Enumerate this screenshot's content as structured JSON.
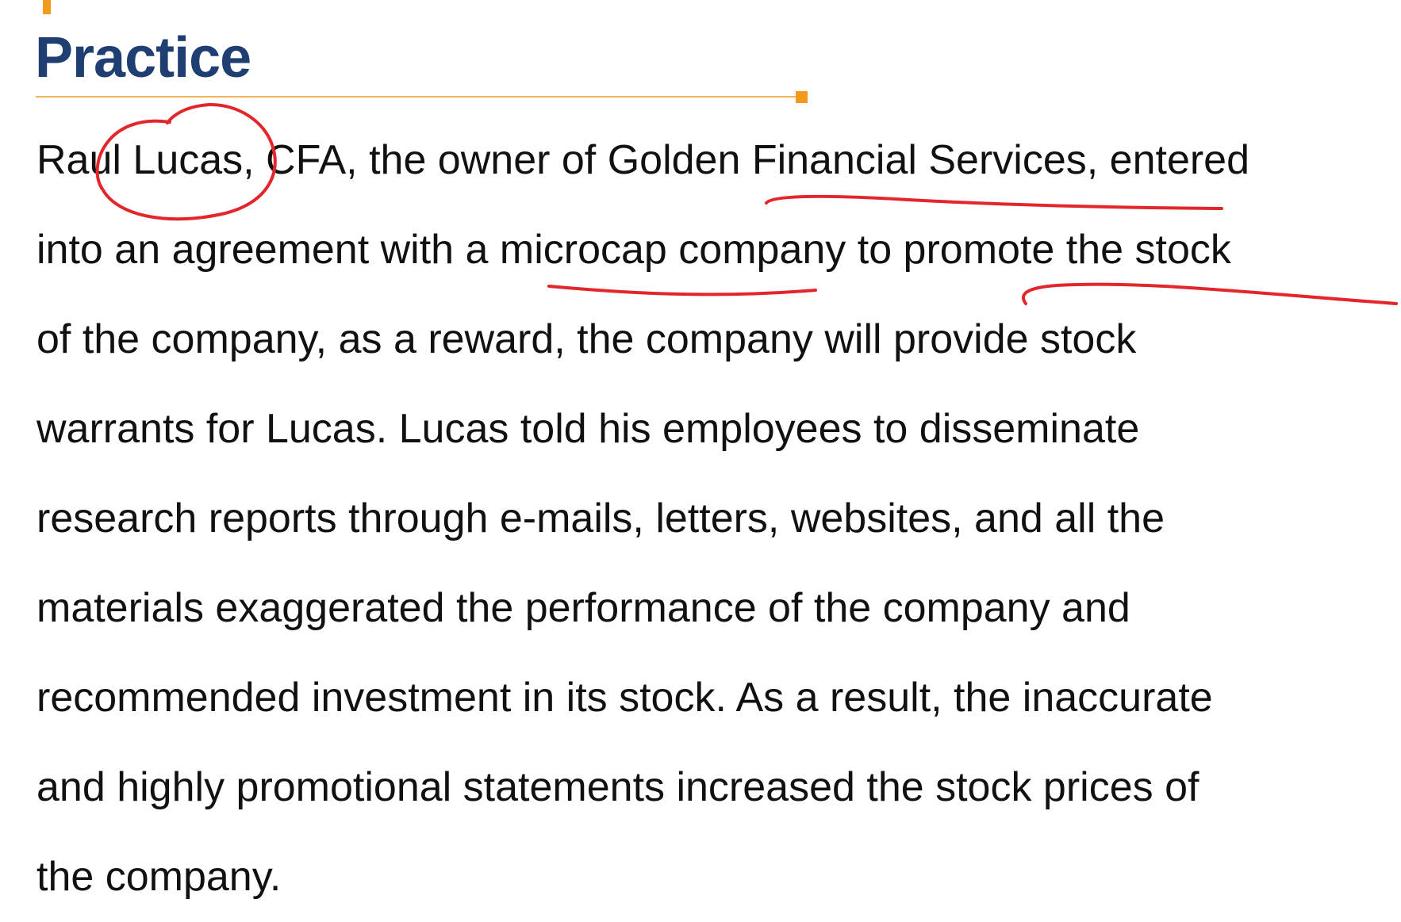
{
  "slide": {
    "title": "Practice",
    "paragraph_lines": [
      "Raul Lucas, CFA, the owner of Golden Financial Services, entered",
      "into an agreement with a microcap company to promote the stock",
      "of the company, as a reward, the company will provide stock",
      "warrants for Lucas. Lucas told his employees to disseminate",
      "research reports through e-mails, letters, websites, and all the",
      "materials exaggerated the performance of the company and",
      "recommended investment in its stock. As a result, the inaccurate",
      "and highly promotional statements increased the stock prices of",
      "the company."
    ]
  },
  "colors": {
    "title": "#1f3f73",
    "accent": "#f39a1c",
    "rule": "#f2b35d",
    "ink_annotation": "#e2262a",
    "text": "#111111"
  }
}
